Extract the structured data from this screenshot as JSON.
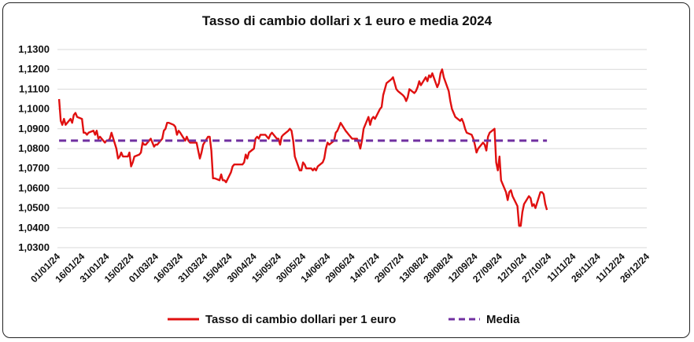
{
  "chart_data": {
    "type": "line",
    "title": "Tasso di cambio dollari x 1 euro e media 2024",
    "xlabel": "",
    "ylabel": "",
    "ylim": [
      1.03,
      1.13
    ],
    "y_ticks": [
      "1,0300",
      "1,0400",
      "1,0500",
      "1,0600",
      "1,0700",
      "1,0800",
      "1,0900",
      "1,1000",
      "1,1100",
      "1,1200",
      "1,1300"
    ],
    "x_ticks": [
      "01/01/24",
      "16/01/24",
      "31/01/24",
      "15/02/24",
      "01/03/24",
      "16/03/24",
      "31/03/24",
      "15/04/24",
      "30/04/24",
      "15/05/24",
      "30/05/24",
      "14/06/24",
      "29/06/24",
      "14/07/24",
      "29/07/24",
      "13/08/24",
      "28/08/24",
      "12/09/24",
      "27/09/24",
      "12/10/24",
      "27/10/24",
      "11/11/24",
      "26/11/24",
      "11/12/24",
      "26/12/24"
    ],
    "x_range_days": [
      0,
      360
    ],
    "grid": "horizontal",
    "legend_position": "bottom",
    "series": [
      {
        "name": "Tasso di cambio dollari per 1 euro",
        "color": "#e01010",
        "points": [
          [
            1,
            1.105
          ],
          [
            2,
            1.094
          ],
          [
            3,
            1.092
          ],
          [
            4,
            1.095
          ],
          [
            5,
            1.092
          ],
          [
            8,
            1.095
          ],
          [
            9,
            1.093
          ],
          [
            10,
            1.097
          ],
          [
            11,
            1.098
          ],
          [
            12,
            1.096
          ],
          [
            15,
            1.095
          ],
          [
            16,
            1.088
          ],
          [
            17,
            1.088
          ],
          [
            18,
            1.087
          ],
          [
            19,
            1.088
          ],
          [
            22,
            1.089
          ],
          [
            23,
            1.087
          ],
          [
            24,
            1.089
          ],
          [
            25,
            1.085
          ],
          [
            26,
            1.086
          ],
          [
            29,
            1.083
          ],
          [
            30,
            1.084
          ],
          [
            31,
            1.084
          ],
          [
            32,
            1.085
          ],
          [
            33,
            1.088
          ],
          [
            36,
            1.08
          ],
          [
            37,
            1.075
          ],
          [
            38,
            1.076
          ],
          [
            39,
            1.078
          ],
          [
            40,
            1.076
          ],
          [
            43,
            1.076
          ],
          [
            44,
            1.078
          ],
          [
            45,
            1.071
          ],
          [
            46,
            1.073
          ],
          [
            47,
            1.076
          ],
          [
            50,
            1.077
          ],
          [
            51,
            1.078
          ],
          [
            52,
            1.083
          ],
          [
            53,
            1.082
          ],
          [
            54,
            1.082
          ],
          [
            57,
            1.085
          ],
          [
            58,
            1.083
          ],
          [
            59,
            1.081
          ],
          [
            60,
            1.082
          ],
          [
            61,
            1.082
          ],
          [
            64,
            1.085
          ],
          [
            65,
            1.089
          ],
          [
            66,
            1.09
          ],
          [
            67,
            1.093
          ],
          [
            68,
            1.093
          ],
          [
            71,
            1.092
          ],
          [
            72,
            1.091
          ],
          [
            73,
            1.087
          ],
          [
            74,
            1.089
          ],
          [
            75,
            1.088
          ],
          [
            78,
            1.084
          ],
          [
            79,
            1.086
          ],
          [
            80,
            1.084
          ],
          [
            81,
            1.083
          ],
          [
            82,
            1.083
          ],
          [
            85,
            1.083
          ],
          [
            86,
            1.079
          ],
          [
            87,
            1.075
          ],
          [
            88,
            1.078
          ],
          [
            89,
            1.082
          ],
          [
            92,
            1.086
          ],
          [
            93,
            1.086
          ],
          [
            94,
            1.079
          ],
          [
            95,
            1.065
          ],
          [
            96,
            1.065
          ],
          [
            99,
            1.064
          ],
          [
            100,
            1.067
          ],
          [
            101,
            1.064
          ],
          [
            102,
            1.064
          ],
          [
            103,
            1.063
          ],
          [
            106,
            1.068
          ],
          [
            107,
            1.071
          ],
          [
            108,
            1.072
          ],
          [
            109,
            1.072
          ],
          [
            110,
            1.072
          ],
          [
            113,
            1.072
          ],
          [
            114,
            1.073
          ],
          [
            115,
            1.077
          ],
          [
            116,
            1.075
          ],
          [
            117,
            1.078
          ],
          [
            120,
            1.08
          ],
          [
            121,
            1.085
          ],
          [
            122,
            1.086
          ],
          [
            123,
            1.085
          ],
          [
            124,
            1.087
          ],
          [
            127,
            1.087
          ],
          [
            128,
            1.086
          ],
          [
            129,
            1.085
          ],
          [
            130,
            1.087
          ],
          [
            131,
            1.088
          ],
          [
            134,
            1.085
          ],
          [
            135,
            1.085
          ],
          [
            136,
            1.082
          ],
          [
            137,
            1.086
          ],
          [
            138,
            1.087
          ],
          [
            141,
            1.089
          ],
          [
            142,
            1.09
          ],
          [
            143,
            1.089
          ],
          [
            144,
            1.084
          ],
          [
            145,
            1.076
          ],
          [
            148,
            1.069
          ],
          [
            149,
            1.069
          ],
          [
            150,
            1.073
          ],
          [
            151,
            1.072
          ],
          [
            152,
            1.07
          ],
          [
            155,
            1.07
          ],
          [
            156,
            1.069
          ],
          [
            157,
            1.07
          ],
          [
            158,
            1.069
          ],
          [
            159,
            1.071
          ],
          [
            162,
            1.073
          ],
          [
            163,
            1.075
          ],
          [
            164,
            1.08
          ],
          [
            165,
            1.083
          ],
          [
            166,
            1.082
          ],
          [
            169,
            1.084
          ],
          [
            170,
            1.088
          ],
          [
            171,
            1.089
          ],
          [
            172,
            1.091
          ],
          [
            173,
            1.093
          ],
          [
            176,
            1.089
          ],
          [
            177,
            1.088
          ],
          [
            178,
            1.087
          ],
          [
            179,
            1.086
          ],
          [
            180,
            1.085
          ],
          [
            183,
            1.085
          ],
          [
            184,
            1.083
          ],
          [
            185,
            1.08
          ],
          [
            186,
            1.084
          ],
          [
            187,
            1.09
          ],
          [
            190,
            1.096
          ],
          [
            191,
            1.092
          ],
          [
            192,
            1.095
          ],
          [
            193,
            1.096
          ],
          [
            194,
            1.095
          ],
          [
            197,
            1.1
          ],
          [
            198,
            1.101
          ],
          [
            199,
            1.107
          ],
          [
            200,
            1.11
          ],
          [
            201,
            1.113
          ],
          [
            204,
            1.115
          ],
          [
            205,
            1.116
          ],
          [
            206,
            1.113
          ],
          [
            207,
            1.11
          ],
          [
            208,
            1.109
          ],
          [
            211,
            1.107
          ],
          [
            212,
            1.106
          ],
          [
            213,
            1.104
          ],
          [
            214,
            1.106
          ],
          [
            215,
            1.11
          ],
          [
            218,
            1.108
          ],
          [
            219,
            1.109
          ],
          [
            220,
            1.111
          ],
          [
            221,
            1.114
          ],
          [
            222,
            1.112
          ],
          [
            225,
            1.116
          ],
          [
            226,
            1.114
          ],
          [
            227,
            1.117
          ],
          [
            228,
            1.116
          ],
          [
            229,
            1.118
          ],
          [
            232,
            1.111
          ],
          [
            233,
            1.113
          ],
          [
            234,
            1.118
          ],
          [
            235,
            1.12
          ],
          [
            236,
            1.116
          ],
          [
            239,
            1.109
          ],
          [
            240,
            1.104
          ],
          [
            241,
            1.1
          ],
          [
            242,
            1.098
          ],
          [
            243,
            1.096
          ],
          [
            246,
            1.094
          ],
          [
            247,
            1.095
          ],
          [
            248,
            1.093
          ],
          [
            249,
            1.09
          ],
          [
            250,
            1.088
          ],
          [
            253,
            1.087
          ],
          [
            254,
            1.085
          ],
          [
            255,
            1.082
          ],
          [
            256,
            1.078
          ],
          [
            257,
            1.08
          ],
          [
            260,
            1.083
          ],
          [
            261,
            1.082
          ],
          [
            262,
            1.079
          ],
          [
            263,
            1.086
          ],
          [
            264,
            1.088
          ],
          [
            267,
            1.09
          ],
          [
            268,
            1.073
          ],
          [
            269,
            1.069
          ],
          [
            270,
            1.076
          ],
          [
            271,
            1.064
          ],
          [
            274,
            1.058
          ],
          [
            275,
            1.054
          ],
          [
            276,
            1.058
          ],
          [
            277,
            1.059
          ],
          [
            278,
            1.056
          ],
          [
            281,
            1.051
          ],
          [
            282,
            1.041
          ],
          [
            283,
            1.041
          ],
          [
            284,
            1.048
          ],
          [
            285,
            1.052
          ],
          [
            288,
            1.056
          ],
          [
            289,
            1.055
          ],
          [
            290,
            1.051
          ],
          [
            291,
            1.052
          ],
          [
            292,
            1.05
          ],
          [
            295,
            1.058
          ],
          [
            296,
            1.058
          ],
          [
            297,
            1.057
          ],
          [
            298,
            1.052
          ],
          [
            299,
            1.049
          ]
        ]
      },
      {
        "name": "Media",
        "color": "#7030a0",
        "dashed": true,
        "points": [
          [
            1,
            1.084
          ],
          [
            299,
            1.084
          ]
        ]
      }
    ]
  }
}
